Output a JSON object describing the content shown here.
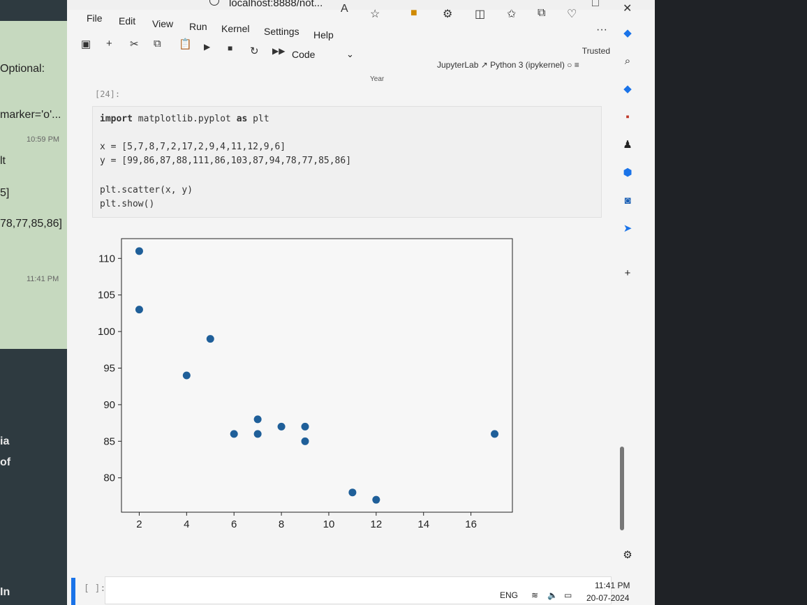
{
  "left_panel": {
    "optional": "Optional:",
    "marker": "marker='o'...",
    "time1": "10:59 PM",
    "plt": "lt",
    "bracket": "5]",
    "values": "78,77,85,86]",
    "time2": "11:41 PM",
    "ia": "ia",
    "of": "of",
    "in": "In"
  },
  "browser": {
    "address": "localhost:8888/not...",
    "read_aloud": "A",
    "menu": [
      "File",
      "Edit",
      "View",
      "Run",
      "Kernel",
      "Settings",
      "Help"
    ],
    "cell_type": "Code",
    "trusted": "Trusted",
    "jupyterlab": "JupyterLab",
    "kernel": "Python 3 (ipykernel)",
    "faded_label": "Year"
  },
  "notebook": {
    "prompt": "[24]:",
    "code": {
      "line1_kw": "import",
      "line1_rest": " matplotlib.pyplot ",
      "line1_as": "as",
      "line1_end": " plt",
      "line2": "x = [5,7,8,7,2,17,2,9,4,11,12,9,6]",
      "line3": "y = [99,86,87,88,111,86,103,87,94,78,77,85,86]",
      "line4": "plt.scatter(x, y)",
      "line5": "plt.show()"
    },
    "empty_prompt": "[ ]:"
  },
  "chart_data": {
    "type": "scatter",
    "x": [
      5,
      7,
      8,
      7,
      2,
      17,
      2,
      9,
      4,
      11,
      12,
      9,
      6
    ],
    "y": [
      99,
      86,
      87,
      88,
      111,
      86,
      103,
      87,
      94,
      78,
      77,
      85,
      86
    ],
    "xticks": [
      2,
      4,
      6,
      8,
      10,
      12,
      14,
      16
    ],
    "yticks": [
      80,
      85,
      90,
      95,
      100,
      105,
      110
    ],
    "xlim": [
      1.25,
      17.75
    ],
    "ylim": [
      75.3,
      112.7
    ],
    "color": "#1f5f99",
    "grid": false,
    "title": "",
    "xlabel": "",
    "ylabel": ""
  },
  "taskbar": {
    "lang": "ENG",
    "time": "11:41 PM",
    "date": "20-07-2024"
  },
  "colors": {
    "accent": "#1a73e8",
    "marker": "#1f5f99"
  }
}
